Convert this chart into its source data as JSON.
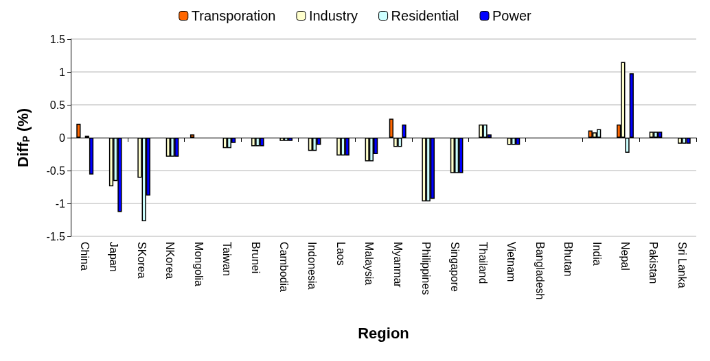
{
  "chart_data": {
    "type": "bar",
    "xlabel": "Region",
    "ylabel": "Diff$_{P}$ (%)",
    "categories": [
      "China",
      "Japan",
      "SKorea",
      "NKorea",
      "Mongolia",
      "Taiwan",
      "Brunei",
      "Cambodia",
      "Indonesia",
      "Laos",
      "Malaysia",
      "Myanmar",
      "Philippines",
      "Singapore",
      "Thailand",
      "Vietnam",
      "Bangladesh",
      "Bhutan",
      "India",
      "Nepal",
      "Pakistan",
      "Sri Lanka"
    ],
    "series": [
      {
        "name": "Transporation",
        "color": "#ff6600",
        "values": [
          0.21,
          null,
          null,
          0,
          0.05,
          0,
          0,
          0,
          0,
          0,
          0,
          0.29,
          0,
          0,
          0,
          0,
          null,
          null,
          0.11,
          0.2,
          null,
          0
        ]
      },
      {
        "name": "Industry",
        "color": "#ffffcc",
        "values": [
          0,
          -0.74,
          -0.61,
          -0.29,
          0,
          -0.16,
          -0.13,
          -0.05,
          -0.2,
          -0.27,
          -0.36,
          -0.14,
          -0.97,
          -0.54,
          0.2,
          -0.11,
          null,
          null,
          0.08,
          1.15,
          0.09,
          -0.09
        ]
      },
      {
        "name": "Residential",
        "color": "#ccffff",
        "values": [
          0.03,
          -0.66,
          -1.27,
          -0.29,
          0,
          -0.16,
          -0.13,
          -0.05,
          -0.2,
          -0.27,
          -0.36,
          -0.14,
          -0.97,
          -0.54,
          0.2,
          -0.11,
          null,
          null,
          0.13,
          -0.23,
          0.09,
          -0.09
        ]
      },
      {
        "name": "Power",
        "color": "#0000ff",
        "values": [
          -0.56,
          -1.13,
          -0.88,
          -0.29,
          0,
          -0.08,
          -0.13,
          -0.05,
          -0.11,
          -0.27,
          -0.25,
          0.2,
          -0.93,
          -0.54,
          0.05,
          -0.11,
          null,
          null,
          0,
          0.98,
          0.09,
          -0.09
        ]
      }
    ],
    "ylim": [
      -1.5,
      1.5
    ],
    "yticks": [
      -1.5,
      -1,
      -0.5,
      0,
      0.5,
      1,
      1.5
    ],
    "grid": "y",
    "legend": "top"
  }
}
